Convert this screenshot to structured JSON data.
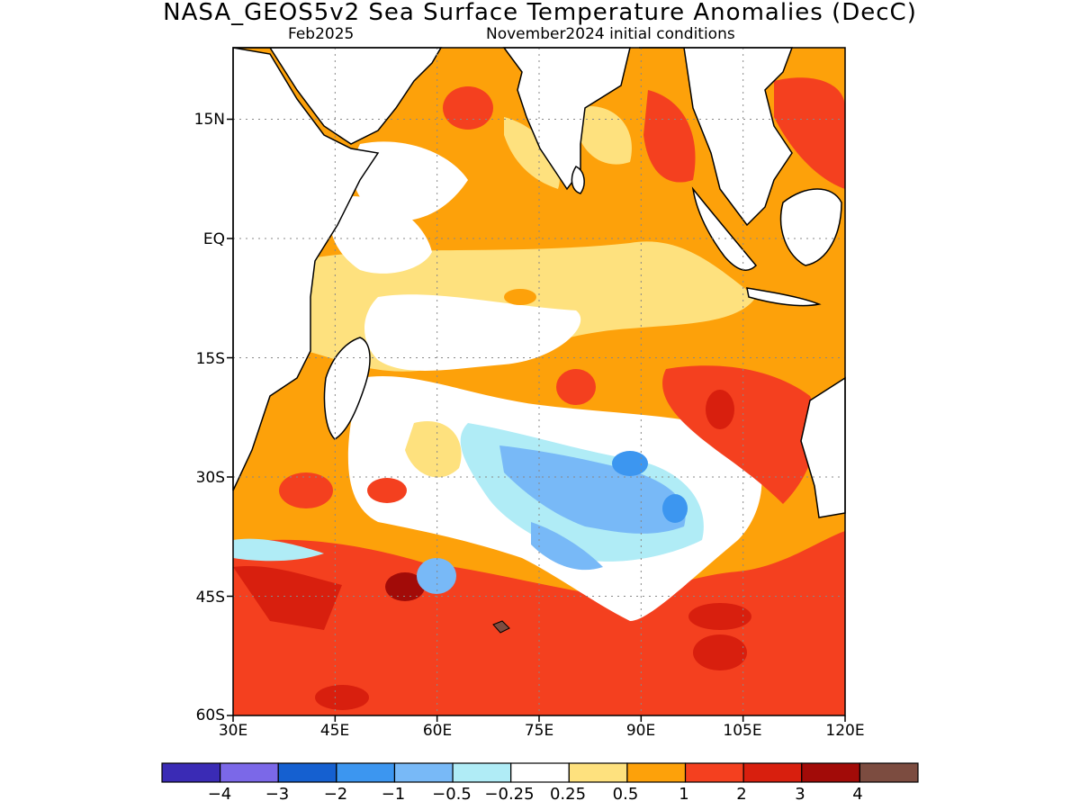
{
  "title": "NASA_GEOS5v2 Sea Surface Temperature Anomalies (DecC)",
  "subtitle_left": "Feb2025",
  "subtitle_right": "November2024 initial conditions",
  "map": {
    "lon_range": [
      30,
      120
    ],
    "lat_range": [
      -60,
      24
    ],
    "lat_ticks": [
      {
        "value": 15,
        "label": "15N"
      },
      {
        "value": 0,
        "label": "EQ"
      },
      {
        "value": -15,
        "label": "15S"
      },
      {
        "value": -30,
        "label": "30S"
      },
      {
        "value": -45,
        "label": "45S"
      },
      {
        "value": -60,
        "label": "60S"
      }
    ],
    "lon_ticks": [
      {
        "value": 30,
        "label": "30E"
      },
      {
        "value": 45,
        "label": "45E"
      },
      {
        "value": 60,
        "label": "60E"
      },
      {
        "value": 75,
        "label": "75E"
      },
      {
        "value": 90,
        "label": "90E"
      },
      {
        "value": 105,
        "label": "105E"
      },
      {
        "value": 120,
        "label": "120E"
      }
    ],
    "grid": true,
    "land_color": "#ffffff"
  },
  "colorbar": {
    "colors": [
      "#3a2bb5",
      "#7b68e8",
      "#1560d0",
      "#3c96f0",
      "#78b9f7",
      "#b0ecf6",
      "#ffffff",
      "#fee17e",
      "#fda10a",
      "#f4401f",
      "#d81f0e",
      "#a20b08",
      "#7c4c40"
    ],
    "labels": [
      "−4",
      "−3",
      "−2",
      "−1",
      "−0.5",
      "−0.25",
      "0.25",
      "0.5",
      "1",
      "2",
      "3",
      "4"
    ]
  }
}
